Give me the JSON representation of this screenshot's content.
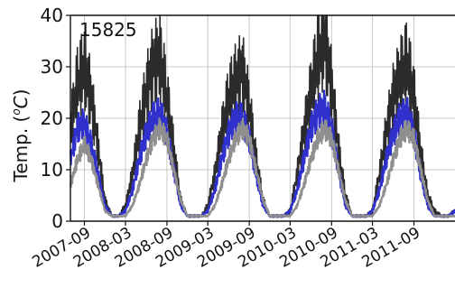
{
  "chart_data": {
    "type": "line",
    "title": "",
    "annotation": "15825",
    "ylabel": "Temp. (°C)",
    "ylabel_parts": {
      "prefix": "Temp. (",
      "degree": "o",
      "unit": "C",
      "suffix": ")"
    },
    "ylim": [
      0,
      40
    ],
    "yticks": [
      0,
      10,
      20,
      30,
      40
    ],
    "xlim": [
      "2007-07-01",
      "2012-03-01"
    ],
    "xticks": [
      "2007-09",
      "2008-03",
      "2008-09",
      "2009-03",
      "2009-09",
      "2010-03",
      "2010-09",
      "2011-03",
      "2011-09"
    ],
    "grid": true,
    "legend": "none",
    "series": [
      {
        "color": "#2b2b2b",
        "x": [
          "2007-07-01",
          "2007-08-01",
          "2007-09-01",
          "2007-10-01",
          "2007-11-01",
          "2007-12-01",
          "2008-01-01",
          "2008-02-01",
          "2008-03-01",
          "2008-04-01",
          "2008-05-01",
          "2008-06-01",
          "2008-07-01",
          "2008-08-01",
          "2008-09-01",
          "2008-10-01",
          "2008-11-01",
          "2008-12-01",
          "2009-01-01",
          "2009-02-01",
          "2009-03-01",
          "2009-04-01",
          "2009-05-01",
          "2009-06-01",
          "2009-07-01",
          "2009-08-01",
          "2009-09-01",
          "2009-10-01",
          "2009-11-01",
          "2009-12-01",
          "2010-01-01",
          "2010-02-01",
          "2010-03-01",
          "2010-04-01",
          "2010-05-01",
          "2010-06-01",
          "2010-07-01",
          "2010-08-01",
          "2010-09-01",
          "2010-10-01",
          "2010-11-01",
          "2010-12-01",
          "2011-01-01",
          "2011-02-01",
          "2011-03-01",
          "2011-04-01",
          "2011-05-01",
          "2011-06-01",
          "2011-07-01",
          "2011-08-01",
          "2011-09-01",
          "2011-10-01",
          "2011-11-01",
          "2011-12-01",
          "2012-01-01",
          "2012-02-01",
          "2012-03-01"
        ],
        "y": [
          18,
          27,
          30,
          24,
          14,
          4,
          1,
          1,
          3,
          9,
          18,
          25,
          30,
          32,
          24,
          14,
          4,
          1,
          1,
          1,
          3,
          9,
          17,
          24,
          27,
          29,
          22,
          12,
          4,
          1,
          1,
          1,
          2,
          9,
          17,
          25,
          32,
          36,
          26,
          14,
          5,
          1,
          1,
          1,
          2,
          9,
          17,
          24,
          28,
          31,
          24,
          13,
          5,
          2,
          1,
          1,
          2
        ]
      },
      {
        "color": "#3030cc",
        "x": [
          "2007-07-01",
          "2007-08-01",
          "2007-09-01",
          "2007-10-01",
          "2007-11-01",
          "2007-12-01",
          "2008-01-01",
          "2008-02-01",
          "2008-03-01",
          "2008-04-01",
          "2008-05-01",
          "2008-06-01",
          "2008-07-01",
          "2008-08-01",
          "2008-09-01",
          "2008-10-01",
          "2008-11-01",
          "2008-12-01",
          "2009-01-01",
          "2009-02-01",
          "2009-03-01",
          "2009-04-01",
          "2009-05-01",
          "2009-06-01",
          "2009-07-01",
          "2009-08-01",
          "2009-09-01",
          "2009-10-01",
          "2009-11-01",
          "2009-12-01",
          "2010-01-01",
          "2010-02-01",
          "2010-03-01",
          "2010-04-01",
          "2010-05-01",
          "2010-06-01",
          "2010-07-01",
          "2010-08-01",
          "2010-09-01",
          "2010-10-01",
          "2010-11-01",
          "2010-12-01",
          "2011-01-01",
          "2011-02-01",
          "2011-03-01",
          "2011-04-01",
          "2011-05-01",
          "2011-06-01",
          "2011-07-01",
          "2011-08-01",
          "2011-09-01",
          "2011-10-01",
          "2011-11-01",
          "2011-12-01",
          "2012-01-01",
          "2012-02-01",
          "2012-03-01"
        ],
        "y": [
          12,
          18,
          19,
          15,
          9,
          3,
          1,
          1,
          2,
          6,
          12,
          17,
          20,
          21,
          17,
          10,
          3,
          1,
          1,
          1,
          2,
          6,
          12,
          17,
          20,
          20,
          16,
          9,
          3,
          1,
          1,
          1,
          2,
          6,
          12,
          18,
          21,
          22,
          18,
          10,
          3,
          1,
          1,
          1,
          2,
          6,
          12,
          17,
          20,
          21,
          17,
          9,
          3,
          1,
          1,
          1,
          2
        ]
      },
      {
        "color": "#8f8f8f",
        "x": [
          "2007-07-01",
          "2007-08-01",
          "2007-09-01",
          "2007-10-01",
          "2007-11-01",
          "2007-12-01",
          "2008-01-01",
          "2008-02-01",
          "2008-03-01",
          "2008-04-01",
          "2008-05-01",
          "2008-06-01",
          "2008-07-01",
          "2008-08-01",
          "2008-09-01",
          "2008-10-01",
          "2008-11-01",
          "2008-12-01",
          "2009-01-01",
          "2009-02-01",
          "2009-03-01",
          "2009-04-01",
          "2009-05-01",
          "2009-06-01",
          "2009-07-01",
          "2009-08-01",
          "2009-09-01",
          "2009-10-01",
          "2009-11-01",
          "2009-12-01",
          "2010-01-01",
          "2010-02-01",
          "2010-03-01",
          "2010-04-01",
          "2010-05-01",
          "2010-06-01",
          "2010-07-01",
          "2010-08-01",
          "2010-09-01",
          "2010-10-01",
          "2010-11-01",
          "2010-12-01",
          "2011-01-01",
          "2011-02-01",
          "2011-03-01",
          "2011-04-01",
          "2011-05-01",
          "2011-06-01",
          "2011-07-01",
          "2011-08-01",
          "2011-09-01",
          "2011-10-01",
          "2011-11-01",
          "2011-12-01",
          "2012-01-01",
          "2012-02-01",
          "2012-03-01"
        ],
        "y": [
          7,
          12,
          15,
          12,
          7,
          2,
          1,
          1,
          1,
          3,
          7,
          12,
          16,
          18,
          16,
          10,
          4,
          1,
          1,
          1,
          1,
          3,
          7,
          12,
          16,
          18,
          16,
          10,
          4,
          1,
          1,
          1,
          1,
          3,
          7,
          12,
          16,
          18,
          16,
          10,
          4,
          1,
          1,
          1,
          1,
          3,
          7,
          12,
          16,
          18,
          16,
          10,
          4,
          1,
          1,
          1,
          1
        ]
      }
    ]
  }
}
